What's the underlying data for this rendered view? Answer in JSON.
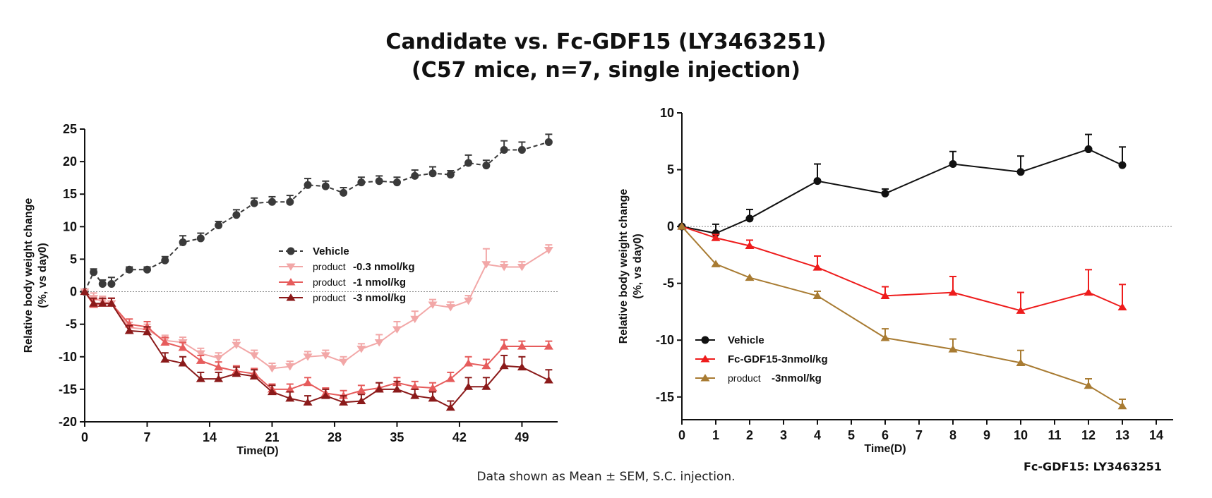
{
  "title": {
    "line1": "Candidate vs. Fc-GDF15 (LY3463251)",
    "line2": "(C57 mice, n=7, single injection)"
  },
  "footnote": "Data shown as Mean ± SEM, S.C. injection.",
  "reference_note": "Fc-GDF15: LY3463251",
  "chart_data": [
    {
      "type": "line",
      "xlabel": "Time(D)",
      "ylabel_line1": "Relative body weight change",
      "ylabel_line2": "(%, vs day0)",
      "xlim": [
        0,
        53
      ],
      "ylim": [
        -20,
        25
      ],
      "xticks": [
        0,
        7,
        14,
        21,
        28,
        35,
        42,
        49
      ],
      "yticks": [
        25,
        20,
        15,
        10,
        5,
        0,
        -5,
        -10,
        -15,
        -20
      ],
      "reference_line_y": 0,
      "x": [
        0,
        1,
        2,
        3,
        5,
        7,
        9,
        11,
        13,
        15,
        17,
        19,
        21,
        23,
        25,
        27,
        29,
        31,
        33,
        35,
        37,
        39,
        41,
        43,
        45,
        47,
        49,
        52
      ],
      "series": [
        {
          "name": "Vehicle",
          "legend_label": "Vehicle",
          "legend_sub": "",
          "color": "#3a3a3a",
          "marker": "circle",
          "dashed": true,
          "values": [
            0,
            3.0,
            1.2,
            1.2,
            3.4,
            3.4,
            4.8,
            7.6,
            8.2,
            10.2,
            11.8,
            13.6,
            13.8,
            13.8,
            16.4,
            16.2,
            15.2,
            16.8,
            17.0,
            16.8,
            17.8,
            18.2,
            18.0,
            19.8,
            19.4,
            21.8,
            21.8,
            23.0
          ],
          "errors": [
            0,
            0.5,
            0.6,
            1.0,
            0.4,
            0.4,
            0.6,
            1.0,
            0.8,
            0.6,
            0.8,
            0.8,
            0.8,
            1.0,
            1.0,
            0.8,
            0.8,
            0.8,
            0.8,
            0.8,
            0.9,
            1.0,
            0.6,
            1.2,
            0.8,
            1.4,
            1.2,
            1.2
          ]
        },
        {
          "name": "product -0.3 nmol/kg",
          "legend_label": "-0.3 nmol/kg",
          "legend_sub": "product",
          "color": "#f2a7a7",
          "marker": "triangle-down",
          "dashed": false,
          "values": [
            0,
            -1.0,
            -1.5,
            -1.8,
            -5.5,
            -5.8,
            -7.5,
            -7.8,
            -9.5,
            -10.2,
            -8.2,
            -9.8,
            -11.8,
            -11.5,
            -10.0,
            -9.8,
            -10.8,
            -8.8,
            -7.8,
            -5.8,
            -4.2,
            -2.0,
            -2.4,
            -1.4,
            4.2,
            3.8,
            3.8,
            6.4
          ],
          "errors": [
            0,
            0.8,
            0.8,
            0.8,
            0.8,
            0.8,
            0.8,
            0.8,
            0.8,
            0.8,
            0.8,
            0.8,
            0.8,
            0.8,
            0.8,
            0.8,
            0.8,
            0.8,
            1.2,
            1.2,
            1.2,
            0.8,
            0.8,
            0.8,
            2.4,
            0.8,
            0.8,
            0.8
          ]
        },
        {
          "name": "product -1 nmol/kg",
          "legend_label": "-1 nmol/kg",
          "legend_sub": "product",
          "color": "#e65c5c",
          "marker": "triangle-up",
          "dashed": false,
          "values": [
            0,
            -2.0,
            -1.8,
            -1.8,
            -5.0,
            -5.4,
            -7.8,
            -8.6,
            -10.6,
            -11.6,
            -12.2,
            -12.6,
            -15.0,
            -15.0,
            -14.0,
            -15.6,
            -16.0,
            -15.2,
            -14.8,
            -14.0,
            -14.6,
            -14.8,
            -13.4,
            -11.0,
            -11.4,
            -8.4,
            -8.4,
            -8.4
          ],
          "errors": [
            0,
            0.8,
            0.8,
            0.8,
            0.8,
            0.8,
            0.8,
            0.8,
            0.8,
            0.8,
            0.8,
            0.8,
            0.8,
            0.8,
            0.8,
            0.8,
            0.8,
            0.8,
            0.8,
            0.8,
            0.8,
            0.8,
            1.0,
            1.0,
            1.0,
            1.0,
            0.8,
            0.8
          ]
        },
        {
          "name": "product -3 nmol/kg",
          "legend_label": "-3 nmol/kg",
          "legend_sub": "product",
          "color": "#8b1a1a",
          "marker": "triangle-up",
          "dashed": false,
          "values": [
            0,
            -1.8,
            -1.8,
            -1.8,
            -6.0,
            -6.2,
            -10.4,
            -11.0,
            -13.4,
            -13.4,
            -12.6,
            -13.0,
            -15.4,
            -16.4,
            -17.0,
            -16.0,
            -17.0,
            -16.8,
            -15.0,
            -15.0,
            -16.0,
            -16.4,
            -17.8,
            -14.6,
            -14.6,
            -11.4,
            -11.6,
            -13.6
          ],
          "errors": [
            0,
            0.8,
            0.8,
            0.8,
            0.8,
            0.8,
            1.0,
            1.0,
            1.0,
            1.0,
            1.0,
            1.0,
            1.0,
            1.0,
            1.0,
            1.0,
            1.0,
            1.0,
            1.0,
            1.2,
            1.0,
            1.0,
            1.0,
            1.4,
            1.4,
            1.6,
            1.6,
            1.6
          ]
        }
      ]
    },
    {
      "type": "line",
      "xlabel": "Time(D)",
      "ylabel_line1": "Relative body weight change",
      "ylabel_line2": "(%, vs day0)",
      "xlim": [
        0,
        14.5
      ],
      "ylim": [
        -17,
        10
      ],
      "xticks": [
        0,
        1,
        2,
        3,
        4,
        5,
        6,
        7,
        8,
        9,
        10,
        11,
        12,
        13,
        14
      ],
      "yticks": [
        10,
        5,
        0,
        -5,
        -10,
        -15
      ],
      "reference_line_y": 0,
      "x": [
        0,
        1,
        2,
        4,
        6,
        8,
        10,
        12,
        13
      ],
      "series": [
        {
          "name": "Vehicle",
          "legend_label": "Vehicle",
          "legend_sub": "",
          "color": "#111111",
          "marker": "circle",
          "dashed": false,
          "values": [
            0,
            -0.6,
            0.7,
            4.0,
            2.9,
            5.5,
            4.8,
            6.8,
            5.4
          ],
          "errors": [
            0,
            0.8,
            0.8,
            1.5,
            0.4,
            1.1,
            1.4,
            1.3,
            1.6
          ]
        },
        {
          "name": "Fc-GDF15-3nmol/kg",
          "legend_label": "Fc-GDF15-3nmol/kg",
          "legend_sub": "",
          "color": "#ee1c1c",
          "marker": "triangle-up",
          "dashed": false,
          "values": [
            0,
            -1.0,
            -1.7,
            -3.6,
            -6.1,
            -5.8,
            -7.4,
            -5.8,
            -7.1
          ],
          "errors": [
            0,
            0.3,
            0.5,
            1.0,
            0.8,
            1.4,
            1.6,
            2.0,
            2.0
          ]
        },
        {
          "name": "product -3nmol/kg",
          "legend_label": "-3nmol/kg",
          "legend_sub": "product",
          "color": "#a87b32",
          "marker": "triangle-up",
          "dashed": false,
          "values": [
            0,
            -3.3,
            -4.5,
            -6.1,
            -9.8,
            -10.8,
            -12.0,
            -14.0,
            -15.8
          ],
          "errors": [
            0,
            0,
            0,
            0.4,
            0.8,
            0.9,
            1.1,
            0.6,
            0.6
          ]
        }
      ]
    }
  ]
}
